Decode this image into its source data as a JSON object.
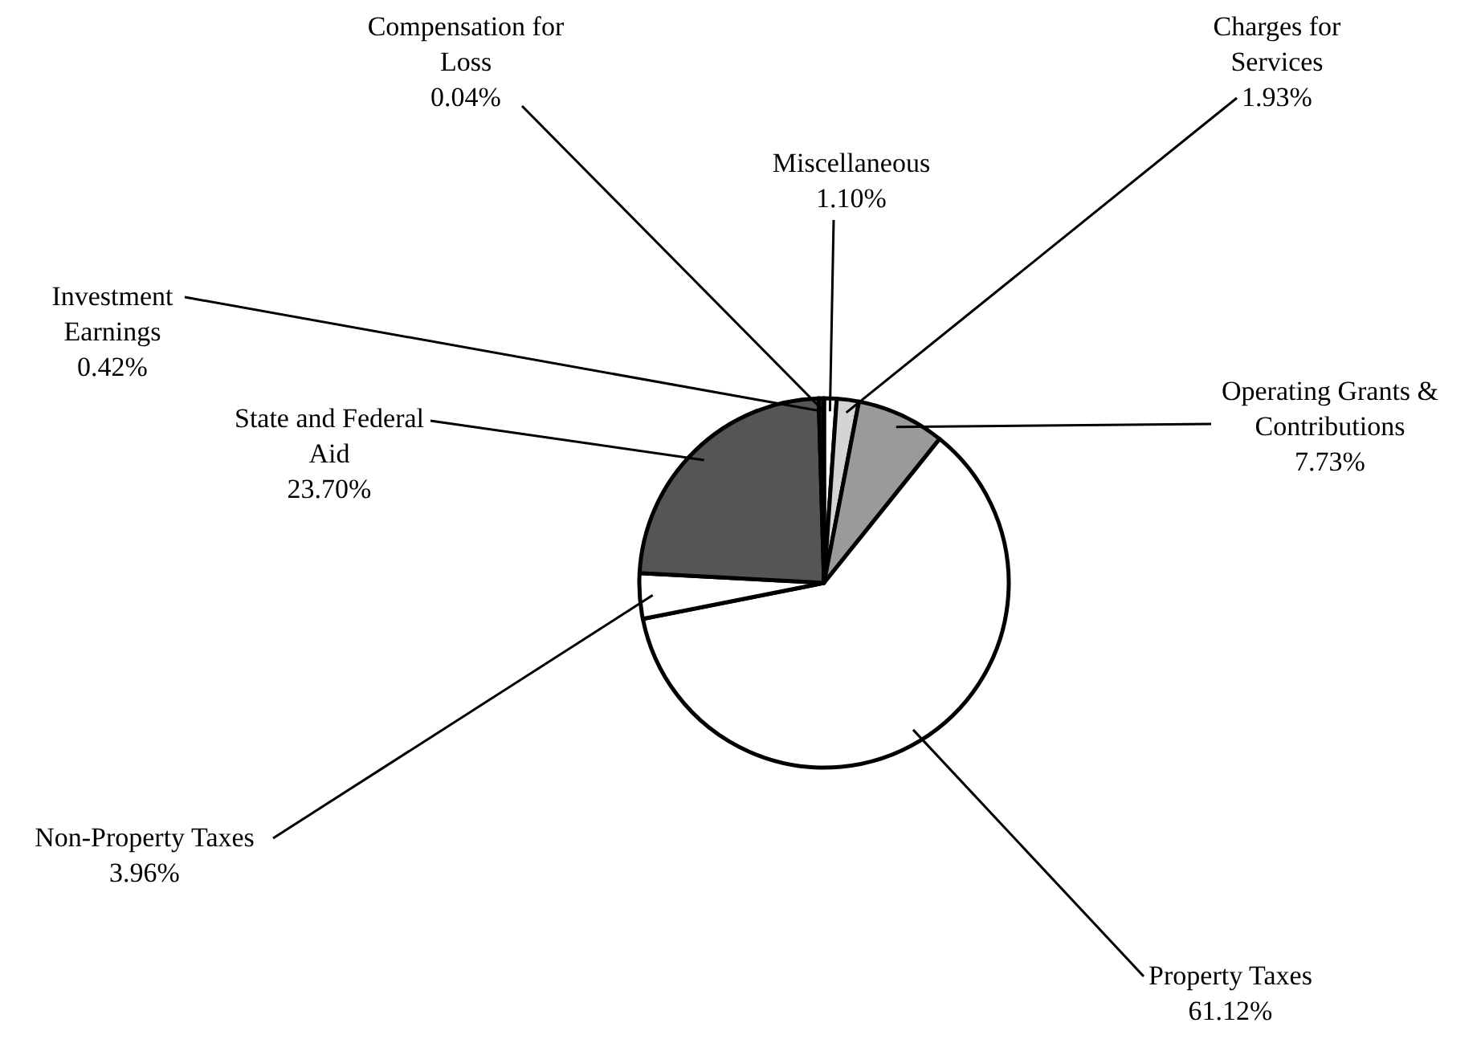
{
  "chart_data": {
    "type": "pie",
    "categories": [
      "Miscellaneous",
      "Charges for Services",
      "Operating Grants & Contributions",
      "Property Taxes",
      "Non-Property Taxes",
      "State and Federal Aid",
      "Investment Earnings",
      "Compensation for Loss"
    ],
    "values": [
      1.1,
      1.93,
      7.73,
      61.12,
      3.96,
      23.7,
      0.42,
      0.04
    ],
    "value_labels": [
      "1.10%",
      "1.93%",
      "7.73%",
      "61.12%",
      "3.96%",
      "23.70%",
      "0.42%",
      "0.04%"
    ],
    "colors": [
      "#ffffff",
      "#d4d4d4",
      "#9a9a9a",
      "#ffffff",
      "#ffffff",
      "#555555",
      "#303030",
      "#000000"
    ]
  }
}
